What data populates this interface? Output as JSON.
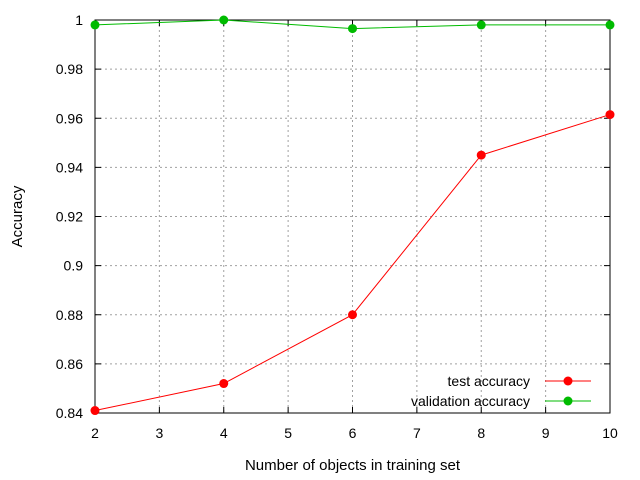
{
  "chart_data": {
    "type": "line",
    "title": "",
    "xlabel": "Number of objects in training set",
    "ylabel": "Accuracy",
    "xlim": [
      2,
      10
    ],
    "ylim": [
      0.84,
      1
    ],
    "xticks": [
      2,
      3,
      4,
      5,
      6,
      7,
      8,
      9,
      10
    ],
    "yticks": [
      0.84,
      0.86,
      0.88,
      0.9,
      0.92,
      0.94,
      0.96,
      0.98,
      1
    ],
    "ytick_labels": [
      "0.84",
      "0.86",
      "0.88",
      "0.9",
      "0.92",
      "0.94",
      "0.96",
      "0.98",
      "1"
    ],
    "grid": true,
    "legend_position": "bottom-right",
    "x": [
      2,
      4,
      6,
      8,
      10
    ],
    "series": [
      {
        "name": "test accuracy",
        "color": "#ff0000",
        "marker": "circle",
        "values": [
          0.841,
          0.852,
          0.88,
          0.945,
          0.9615
        ]
      },
      {
        "name": "validation accuracy",
        "color": "#00bb00",
        "marker": "circle",
        "values": [
          0.998,
          1.0,
          0.9965,
          0.998,
          0.998
        ]
      }
    ]
  }
}
